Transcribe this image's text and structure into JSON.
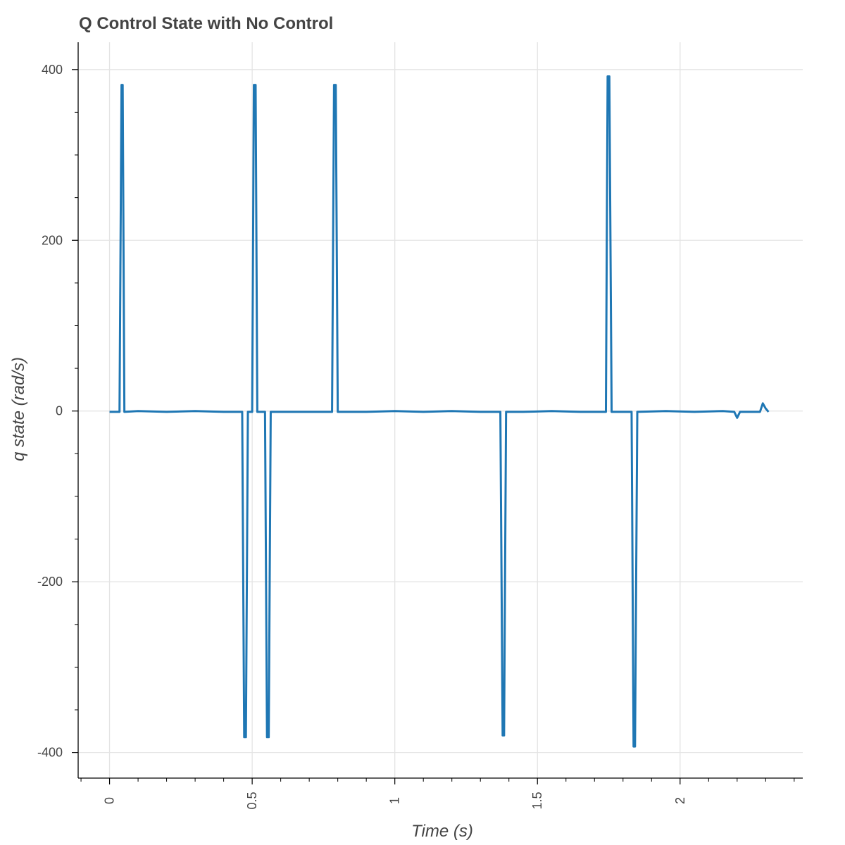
{
  "chart_data": {
    "type": "line",
    "title": "Q Control State with No Control",
    "xlabel": "Time (s)",
    "ylabel": "q state (rad/s)",
    "xlim": [
      -0.11,
      2.43
    ],
    "ylim": [
      -430,
      432
    ],
    "xticks": [
      0,
      0.5,
      1,
      1.5,
      2
    ],
    "xtick_labels": [
      "0",
      "0.5",
      "1",
      "1.5",
      "2"
    ],
    "yticks": [
      400,
      200,
      0,
      -200,
      -400
    ],
    "ytick_labels": [
      "400",
      "200",
      "0",
      "-200",
      "-400"
    ],
    "grid": true,
    "line_color": "#1f77b4",
    "series": [
      {
        "x": [
          0.0,
          0.035,
          0.042,
          0.046,
          0.052,
          0.1,
          0.2,
          0.3,
          0.4,
          0.465,
          0.472,
          0.478,
          0.485,
          0.5,
          0.506,
          0.512,
          0.518,
          0.545,
          0.552,
          0.558,
          0.565,
          0.6,
          0.7,
          0.78,
          0.787,
          0.793,
          0.8,
          0.9,
          1.0,
          1.1,
          1.2,
          1.3,
          1.37,
          1.378,
          1.383,
          1.39,
          1.45,
          1.55,
          1.65,
          1.74,
          1.746,
          1.752,
          1.76,
          1.83,
          1.837,
          1.842,
          1.85,
          1.95,
          2.05,
          2.15,
          2.19,
          2.2,
          2.21,
          2.25,
          2.28,
          2.29,
          2.3,
          2.31
        ],
        "y": [
          -1,
          -1,
          382,
          382,
          -1,
          0,
          -1,
          0,
          -1,
          -1,
          -382,
          -382,
          -1,
          -1,
          382,
          382,
          -1,
          -1,
          -382,
          -382,
          -1,
          -1,
          -1,
          -1,
          382,
          382,
          -1,
          -1,
          0,
          -1,
          0,
          -1,
          -1,
          -380,
          -380,
          -1,
          -1,
          0,
          -1,
          -1,
          392,
          392,
          -1,
          -1,
          -393,
          -393,
          -1,
          0,
          -1,
          0,
          -1,
          -8,
          -1,
          -1,
          -1,
          9,
          3,
          -1
        ]
      }
    ]
  }
}
